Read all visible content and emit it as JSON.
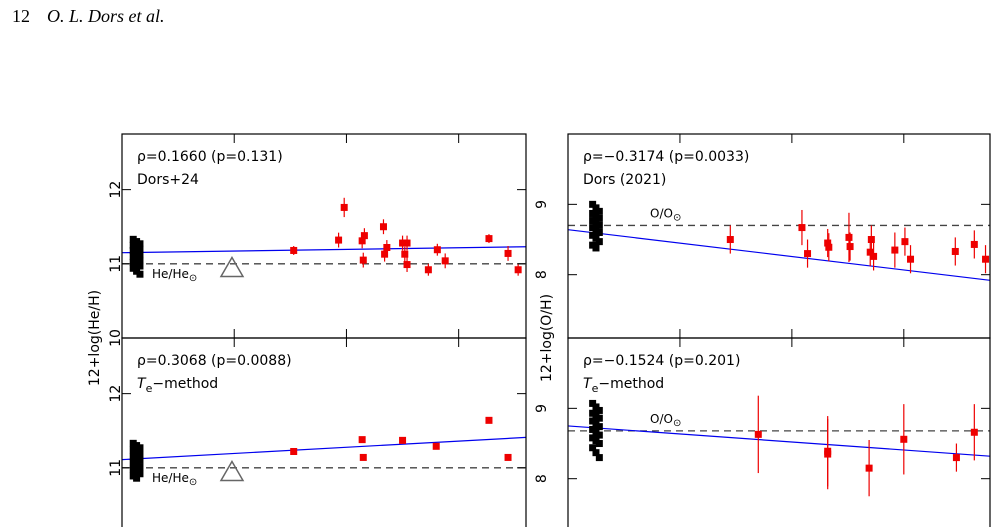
{
  "header": {
    "page_number": "12",
    "authors": "O. L. Dors et al."
  },
  "chart_data": [
    {
      "type": "scatter",
      "ylabel": "12+log(He/H)",
      "annotation": "ρ=0.1660 (p=0.131)",
      "subtitle": "Dors+24",
      "xlim": [
        0,
        3.6
      ],
      "ylim": [
        10,
        12.75
      ],
      "xticks": [
        1,
        2,
        3
      ],
      "yticks": [
        10,
        11,
        12
      ],
      "series": [
        {
          "color": "#000000",
          "x": [
            0.1,
            0.13,
            0.16,
            0.1,
            0.13,
            0.16,
            0.1,
            0.13,
            0.16,
            0.1,
            0.13,
            0.16,
            0.1,
            0.13,
            0.16,
            0.1,
            0.13,
            0.16
          ],
          "values": [
            11.33,
            11.3,
            11.27,
            11.25,
            11.22,
            11.2,
            11.18,
            11.15,
            11.12,
            11.1,
            11.08,
            11.05,
            11.02,
            11.0,
            10.97,
            10.94,
            10.9,
            10.86
          ]
        },
        {
          "color": "#ee0000",
          "x": [
            1.53,
            1.93,
            1.98,
            2.14,
            2.16,
            2.15,
            2.33,
            2.34,
            2.36,
            2.5,
            2.54,
            2.52,
            2.54,
            2.73,
            2.81,
            2.88,
            3.27,
            3.44,
            3.53
          ],
          "values": [
            11.18,
            11.32,
            11.76,
            11.31,
            11.38,
            11.05,
            11.5,
            11.13,
            11.22,
            11.28,
            11.28,
            11.13,
            10.99,
            10.92,
            11.19,
            11.04,
            11.34,
            11.14,
            10.92
          ],
          "errors": [
            0.06,
            0.1,
            0.13,
            0.1,
            0.1,
            0.1,
            0.1,
            0.1,
            0.1,
            0.1,
            0.1,
            0.1,
            0.1,
            0.08,
            0.08,
            0.1,
            0.06,
            0.1,
            0.08
          ]
        }
      ],
      "fit": {
        "color": "#0000ee",
        "x": [
          0,
          3.6
        ],
        "values": [
          11.15,
          11.23
        ]
      },
      "reference": {
        "value": 11.0,
        "text": "He/He",
        "subscript": "⊙"
      },
      "solar_marker": {
        "x": 0.98,
        "value": 10.95
      }
    },
    {
      "type": "scatter",
      "ylabel": "12+log(O/H)",
      "annotation": "ρ=−0.3174 (p=0.0033)",
      "subtitle": "Dors (2021)",
      "xlim": [
        0,
        3.77
      ],
      "ylim": [
        7.1,
        10.0
      ],
      "xticks": [
        1,
        2,
        3
      ],
      "yticks": [
        8,
        9
      ],
      "series": [
        {
          "color": "#000000",
          "x": [
            0.22,
            0.25,
            0.28,
            0.22,
            0.25,
            0.28,
            0.22,
            0.25,
            0.28,
            0.22,
            0.25,
            0.28,
            0.22,
            0.25,
            0.28,
            0.22,
            0.25
          ],
          "values": [
            9.0,
            8.95,
            8.9,
            8.87,
            8.84,
            8.8,
            8.77,
            8.74,
            8.7,
            8.67,
            8.64,
            8.6,
            8.56,
            8.52,
            8.47,
            8.42,
            8.38
          ]
        },
        {
          "color": "#ee0000",
          "x": [
            1.45,
            2.09,
            2.14,
            2.32,
            2.33,
            2.51,
            2.52,
            2.7,
            2.71,
            2.73,
            2.92,
            3.01,
            3.06,
            3.46,
            3.63,
            3.73
          ],
          "values": [
            8.5,
            8.67,
            8.3,
            8.45,
            8.39,
            8.53,
            8.4,
            8.32,
            8.5,
            8.26,
            8.35,
            8.47,
            8.22,
            8.33,
            8.43,
            8.22
          ],
          "errors": [
            0.2,
            0.25,
            0.2,
            0.2,
            0.2,
            0.35,
            0.2,
            0.2,
            0.2,
            0.2,
            0.25,
            0.2,
            0.2,
            0.2,
            0.2,
            0.2
          ]
        }
      ],
      "fit": {
        "color": "#0000ee",
        "x": [
          0,
          3.77
        ],
        "values": [
          8.64,
          7.92
        ]
      },
      "reference": {
        "value": 8.7,
        "text": "O/O",
        "subscript": "⊙"
      }
    },
    {
      "type": "scatter",
      "annotation": "ρ=0.3068 (p=0.0088)",
      "subtitle": {
        "symbol": "T",
        "subscript": "e",
        "text": "−method"
      },
      "xlim": [
        0,
        3.6
      ],
      "ylim": [
        10,
        12.75
      ],
      "xticks": [
        1,
        2,
        3
      ],
      "yticks": [
        11,
        12
      ],
      "series": [
        {
          "color": "#000000",
          "x": [
            0.1,
            0.13,
            0.16,
            0.1,
            0.13,
            0.16,
            0.1,
            0.13,
            0.16,
            0.1,
            0.13,
            0.16,
            0.1,
            0.13,
            0.16,
            0.1,
            0.13
          ],
          "values": [
            11.33,
            11.3,
            11.27,
            11.24,
            11.21,
            11.18,
            11.15,
            11.12,
            11.1,
            11.07,
            11.04,
            11.01,
            10.98,
            10.95,
            10.92,
            10.89,
            10.86
          ]
        },
        {
          "color": "#ee0000",
          "x": [
            1.53,
            2.14,
            2.15,
            2.5,
            2.8,
            3.27,
            3.44
          ],
          "values": [
            11.22,
            11.38,
            11.14,
            11.37,
            11.29,
            11.64,
            11.14
          ]
        }
      ],
      "fit": {
        "color": "#0000ee",
        "x": [
          0,
          3.6
        ],
        "values": [
          11.11,
          11.41
        ]
      },
      "reference": {
        "value": 11.0,
        "text": "He/He",
        "subscript": "⊙"
      },
      "solar_marker": {
        "x": 0.98,
        "value": 10.95
      }
    },
    {
      "type": "scatter",
      "annotation": "ρ=−0.1524 (p=0.201)",
      "subtitle": {
        "symbol": "T",
        "subscript": "e",
        "text": "−method"
      },
      "xlim": [
        0,
        3.77
      ],
      "ylim": [
        7.1,
        10.0
      ],
      "xticks": [
        1,
        2,
        3
      ],
      "yticks": [
        8,
        9
      ],
      "series": [
        {
          "color": "#000000",
          "x": [
            0.22,
            0.25,
            0.28,
            0.22,
            0.25,
            0.28,
            0.22,
            0.25,
            0.28,
            0.22,
            0.25,
            0.28,
            0.22,
            0.25,
            0.28,
            0.22,
            0.25,
            0.28
          ],
          "values": [
            9.07,
            9.02,
            8.97,
            8.93,
            8.9,
            8.86,
            8.82,
            8.78,
            8.74,
            8.7,
            8.66,
            8.62,
            8.58,
            8.54,
            8.5,
            8.44,
            8.37,
            8.3
          ]
        },
        {
          "color": "#ee0000",
          "x": [
            1.7,
            2.32,
            2.32,
            2.69,
            3.0,
            3.47,
            3.63
          ],
          "values": [
            8.63,
            8.39,
            8.35,
            8.15,
            8.56,
            8.3,
            8.66
          ],
          "errors": [
            0.55,
            0.5,
            0.5,
            0.4,
            0.5,
            0.2,
            0.4
          ]
        }
      ],
      "fit": {
        "color": "#0000ee",
        "x": [
          0,
          3.77
        ],
        "values": [
          8.75,
          8.32
        ]
      },
      "reference": {
        "value": 8.68,
        "text": "O/O",
        "subscript": "⊙"
      }
    }
  ]
}
